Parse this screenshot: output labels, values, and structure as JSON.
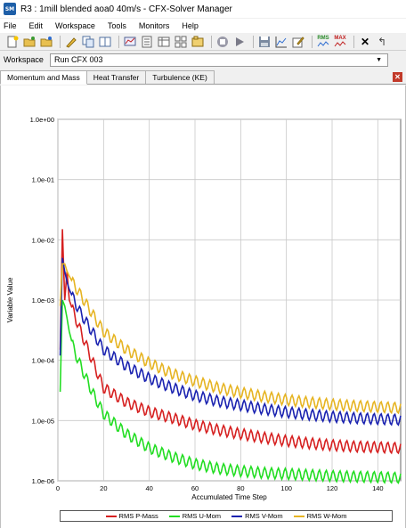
{
  "window": {
    "app_icon_text": "SM",
    "title": "R3 : 1mill blended  aoa0 40m/s - CFX-Solver Manager"
  },
  "menu": [
    "File",
    "Edit",
    "Workspace",
    "Tools",
    "Monitors",
    "Help"
  ],
  "toolbar": {
    "icons": [
      "new-run-icon",
      "open-icon",
      "open-results-icon",
      "edit-icon",
      "copy-icon",
      "layout-icon",
      "monitor-icon",
      "export-icon",
      "table-icon",
      "grid-icon",
      "workspace-icon",
      "stop-icon",
      "play-icon",
      "save-icon",
      "plot-icon",
      "edit-plot-icon",
      "rms-icon",
      "max-icon",
      "close-icon",
      "back-icon"
    ],
    "rms_label": "RMS",
    "max_label": "MAX"
  },
  "workspace": {
    "label": "Workspace",
    "selected": "Run CFX 003"
  },
  "tabs": [
    "Momentum and Mass",
    "Heat Transfer",
    "Turbulence (KE)"
  ],
  "active_tab": "Momentum and Mass",
  "colors": {
    "p_mass": "#d62020",
    "u_mom": "#22dd22",
    "v_mom": "#1a22b0",
    "w_mom": "#e6b422",
    "grid": "#c8c8c8"
  },
  "chart_data": {
    "type": "line",
    "xlabel": "Accumulated Time Step",
    "ylabel": "Variable Value",
    "x_ticks": [
      0,
      20,
      40,
      60,
      80,
      100,
      120,
      140
    ],
    "y_ticks": [
      "1.0e+00",
      "1.0e-01",
      "1.0e-02",
      "1.0e-03",
      "1.0e-04",
      "1.0e-05",
      "1.0e-06"
    ],
    "xlim": [
      0,
      150
    ],
    "ylim_log10": [
      -6,
      0
    ],
    "legend_position": "bottom",
    "series": [
      {
        "name": "RMS P-Mass",
        "x": [
          1,
          2,
          3,
          4,
          5,
          7,
          10,
          15,
          20,
          30,
          40,
          50,
          60,
          70,
          80,
          90,
          100,
          110,
          120,
          130,
          140,
          150
        ],
        "y": [
          0.00015,
          0.015,
          0.001,
          0.003,
          0.001,
          0.0006,
          0.0003,
          0.0001,
          3.5e-05,
          2e-05,
          1.4e-05,
          1.1e-05,
          8.5e-06,
          7e-06,
          6e-06,
          5.2e-06,
          4.6e-06,
          4.2e-06,
          3.9e-06,
          3.7e-06,
          3.6e-06,
          3.5e-06
        ]
      },
      {
        "name": "RMS U-Mom",
        "x": [
          1,
          2,
          3,
          4,
          5,
          7,
          10,
          15,
          20,
          30,
          40,
          50,
          60,
          70,
          80,
          90,
          100,
          110,
          120,
          130,
          140,
          150
        ],
        "y": [
          3e-05,
          0.001,
          0.0008,
          0.0005,
          0.0003,
          0.00015,
          8e-05,
          3e-05,
          1.3e-05,
          6e-06,
          3.5e-06,
          2.5e-06,
          1.9e-06,
          1.6e-06,
          1.45e-06,
          1.35e-06,
          1.3e-06,
          1.25e-06,
          1.2e-06,
          1.17e-06,
          1.15e-06,
          1.12e-06
        ]
      },
      {
        "name": "RMS V-Mom",
        "x": [
          1,
          2,
          3,
          4,
          5,
          7,
          10,
          15,
          20,
          30,
          40,
          50,
          60,
          70,
          80,
          90,
          100,
          110,
          120,
          130,
          140,
          150
        ],
        "y": [
          0.00012,
          0.005,
          0.003,
          0.002,
          0.0015,
          0.001,
          0.0006,
          0.0003,
          0.00015,
          8e-05,
          5e-05,
          3.5e-05,
          2.6e-05,
          2.1e-05,
          1.8e-05,
          1.55e-05,
          1.38e-05,
          1.25e-05,
          1.16e-05,
          1.1e-05,
          1.06e-05,
          1.03e-05
        ]
      },
      {
        "name": "RMS W-Mom",
        "x": [
          1,
          2,
          3,
          4,
          5,
          7,
          10,
          15,
          20,
          30,
          40,
          50,
          60,
          70,
          80,
          90,
          100,
          110,
          120,
          130,
          140,
          150
        ],
        "y": [
          0.0008,
          0.004,
          0.004,
          0.003,
          0.0025,
          0.0018,
          0.0012,
          0.0006,
          0.0003,
          0.00015,
          9e-05,
          6e-05,
          4.5e-05,
          3.5e-05,
          2.9e-05,
          2.5e-05,
          2.2e-05,
          2e-05,
          1.85e-05,
          1.75e-05,
          1.68e-05,
          1.62e-05
        ]
      }
    ]
  }
}
